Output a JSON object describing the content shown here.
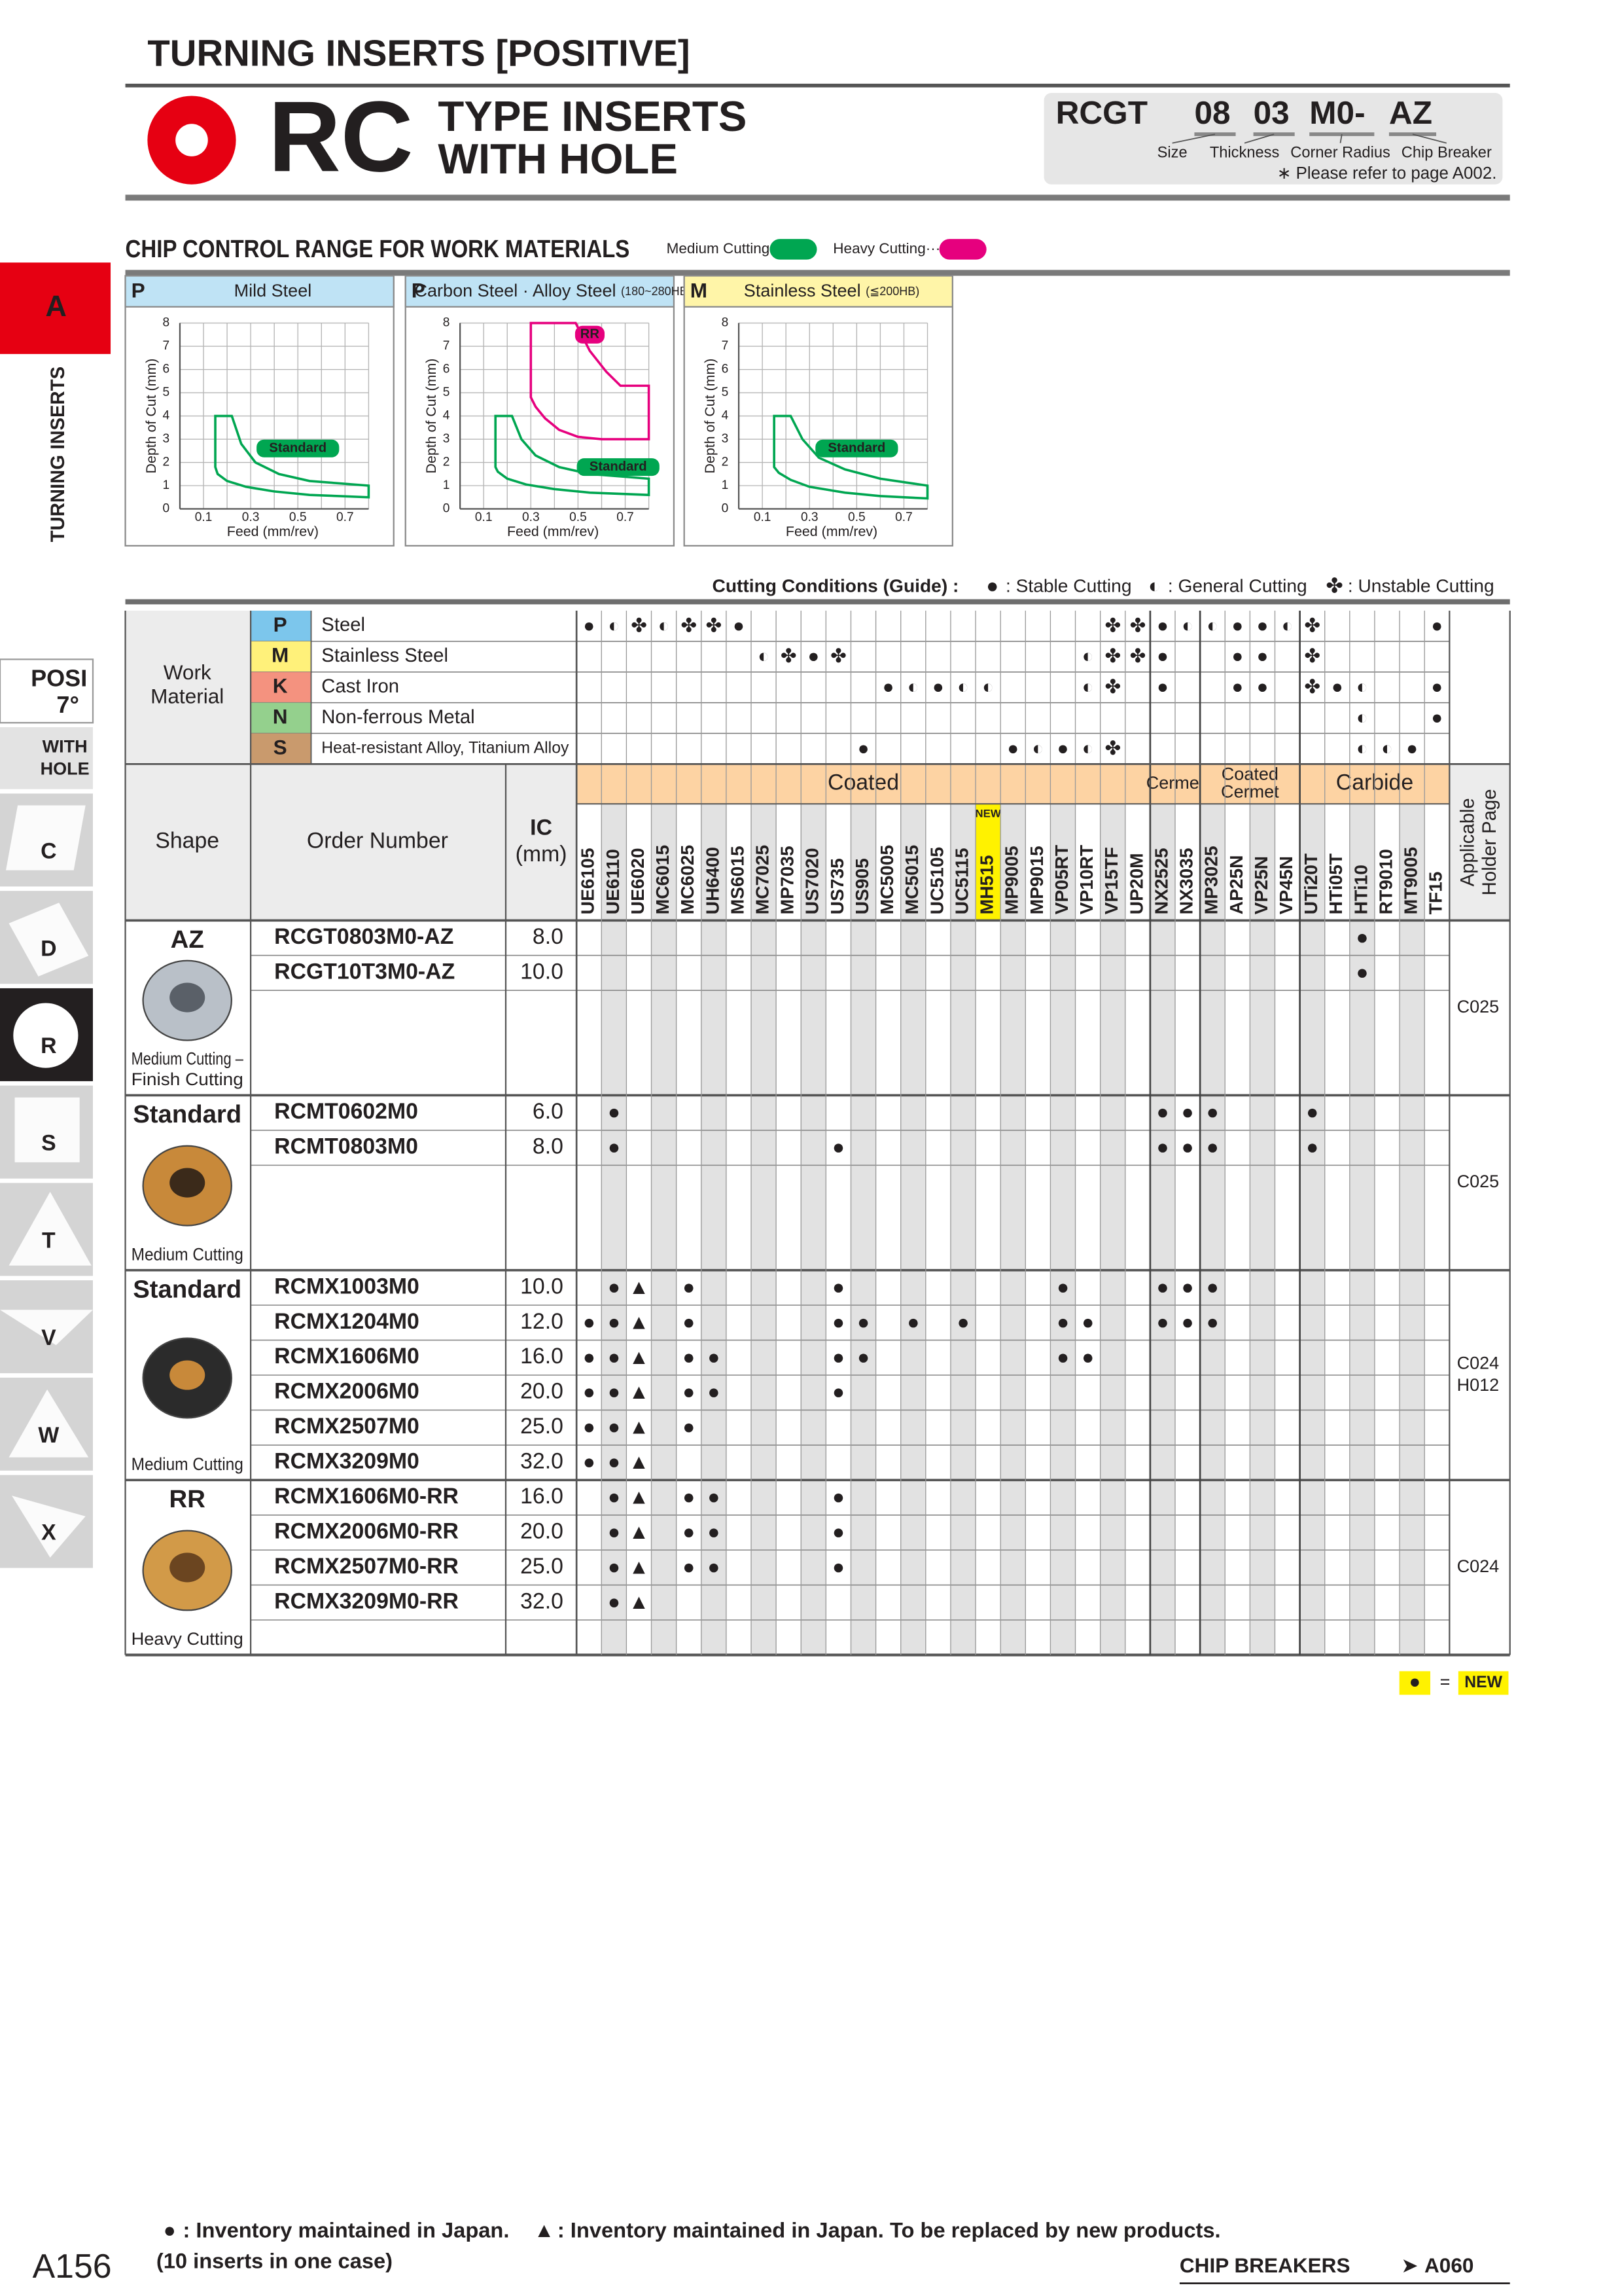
{
  "header": {
    "section_title": "TURNING INSERTS [POSITIVE]",
    "series_code": "RC",
    "title_lines": [
      "TYPE INSERTS",
      "WITH HOLE"
    ]
  },
  "designation": {
    "prefix": "RCGT",
    "codes": [
      "08",
      "03",
      "M0-",
      "AZ"
    ],
    "code_labels": [
      "Size",
      "Thickness",
      "Corner Radius",
      "Chip Breaker"
    ],
    "note": "∗ Please refer to page A002."
  },
  "sidebar": {
    "section_letter": "A",
    "section_name": "TURNING INSERTS",
    "posi": "POSI",
    "angle": "7°",
    "hole_lines": [
      "WITH",
      "HOLE"
    ],
    "shapes": [
      "C",
      "D",
      "R",
      "S",
      "T",
      "V",
      "W",
      "X"
    ],
    "active_shape": "R"
  },
  "chip_control": {
    "title": "CHIP CONTROL RANGE FOR WORK MATERIALS",
    "legend": [
      {
        "label": "Medium Cutting·····",
        "color": "#00a651"
      },
      {
        "label": "Heavy Cutting·····",
        "color": "#e6007e"
      }
    ],
    "y_label": "Depth of Cut (mm)",
    "x_label": "Feed (mm/rev)",
    "xlim": [
      0,
      0.8
    ],
    "ylim": [
      0,
      8
    ],
    "xticks": [
      0.1,
      0.3,
      0.5,
      0.7
    ],
    "yticks": [
      0,
      1,
      2,
      3,
      4,
      5,
      6,
      7,
      8
    ],
    "xgrid": [
      0.1,
      0.2,
      0.3,
      0.4,
      0.5,
      0.6,
      0.7,
      0.8
    ],
    "charts": [
      {
        "code": "P",
        "material": "Mild Steel",
        "header_color": "#bfe3f5",
        "areas": [
          {
            "name": "Standard",
            "color": "#00a651",
            "x": [
              0.15,
              0.15,
              0.22,
              0.26,
              0.32,
              0.42,
              0.55,
              0.8,
              0.8,
              0.55,
              0.4,
              0.28,
              0.2,
              0.16
            ],
            "y": [
              1.8,
              4,
              4,
              2.8,
              2.0,
              1.5,
              1.2,
              1.0,
              0.5,
              0.6,
              0.75,
              0.95,
              1.2,
              1.5
            ]
          }
        ]
      },
      {
        "code": "P",
        "material": "Carbon Steel · Alloy Steel ",
        "sub": "(180~280HB)",
        "header_color": "#bfe3f5",
        "areas": [
          {
            "name": "Standard",
            "color": "#00a651",
            "x": [
              0.15,
              0.15,
              0.22,
              0.26,
              0.32,
              0.42,
              0.55,
              0.8,
              0.8,
              0.55,
              0.4,
              0.28,
              0.2,
              0.16
            ],
            "y": [
              1.8,
              4,
              4,
              3.0,
              2.3,
              1.8,
              1.5,
              1.3,
              0.6,
              0.7,
              0.85,
              1.05,
              1.3,
              1.6
            ]
          },
          {
            "name": "RR",
            "color": "#e6007e",
            "x": [
              0.3,
              0.3,
              0.49,
              0.55,
              0.62,
              0.68,
              0.8,
              0.8,
              0.6,
              0.5,
              0.42,
              0.36,
              0.32
            ],
            "y": [
              4.8,
              8,
              8,
              6.8,
              5.9,
              5.3,
              5.3,
              3.0,
              3.0,
              3.1,
              3.4,
              3.9,
              4.4
            ]
          }
        ]
      },
      {
        "code": "M",
        "material": "Stainless Steel ",
        "sub": "(≦200HB)",
        "header_color": "#fff5a8",
        "areas": [
          {
            "name": "Standard",
            "color": "#00a651",
            "x": [
              0.15,
              0.15,
              0.22,
              0.27,
              0.34,
              0.45,
              0.6,
              0.8,
              0.8,
              0.6,
              0.45,
              0.3,
              0.22,
              0.17
            ],
            "y": [
              1.8,
              4,
              4,
              3.0,
              2.2,
              1.7,
              1.3,
              1.0,
              0.45,
              0.55,
              0.7,
              0.95,
              1.25,
              1.55
            ]
          }
        ]
      }
    ]
  },
  "cutting_conditions": {
    "title": "Cutting Conditions (Guide) :",
    "legend": [
      {
        "symbol": "●",
        "label": ": Stable Cutting"
      },
      {
        "symbol": "◐",
        "label": ": General Cutting"
      },
      {
        "symbol": "✤",
        "label": ": Unstable Cutting"
      }
    ]
  },
  "table": {
    "work_material_label": [
      "Work",
      "Material"
    ],
    "shape_label": "Shape",
    "order_label": "Order Number",
    "ic_label": [
      "IC",
      "(mm)"
    ],
    "holder_label": [
      "Applicable",
      "Holder Page"
    ],
    "new_grade": "MH515",
    "new_badge": "NEW",
    "grade_groups": [
      {
        "label": [
          "Coated"
        ],
        "grades": [
          "UE6105",
          "UE6110",
          "UE6020",
          "MC6015",
          "MC6025",
          "UH6400",
          "MS6015",
          "MC7025",
          "MP7035",
          "US7020",
          "US735",
          "US905",
          "MC5005",
          "MC5015",
          "UC5105",
          "UC5115",
          "MH515",
          "MP9005",
          "MP9015",
          "VP05RT",
          "VP10RT",
          "VP15TF",
          "UP20M"
        ]
      },
      {
        "label": [
          "Cermet"
        ],
        "grades": [
          "NX2525",
          "NX3035"
        ]
      },
      {
        "label": [
          "Coated",
          "Cermet"
        ],
        "grades": [
          "MP3025",
          "AP25N",
          "VP25N",
          "VP45N"
        ]
      },
      {
        "label": [
          "Carbide"
        ],
        "grades": [
          "UTi20T",
          "HTi05T",
          "HTi10",
          "RT9010",
          "MT9005",
          "TF15"
        ]
      }
    ],
    "materials": [
      {
        "code": "P",
        "name": "Steel",
        "bg": "#7cc6ec",
        "color": "#0091d5",
        "symbols": {
          "UE6105": "●",
          "UE6110": "◐",
          "UE6020": "✤",
          "MC6015": "◐",
          "MC6025": "✤",
          "UH6400": "✤",
          "MS6015": "●",
          "VP15TF": "✤",
          "UP20M": "✤",
          "NX2525": "●",
          "NX3035": "◐",
          "MP3025": "◐",
          "AP25N": "●",
          "VP25N": "●",
          "VP45N": "◐",
          "UTi20T": "✤",
          "TF15": "●"
        }
      },
      {
        "code": "M",
        "name": "Stainless Steel",
        "bg": "#fff17a",
        "color": "#e0b000",
        "symbols": {
          "MC7025": "◐",
          "MP7035": "✤",
          "US7020": "●",
          "US735": "✤",
          "VP10RT": "◐",
          "VP15TF": "✤",
          "UP20M": "✤",
          "NX2525": "●",
          "AP25N": "●",
          "VP25N": "●",
          "UTi20T": "✤"
        }
      },
      {
        "code": "K",
        "name": "Cast Iron",
        "bg": "#f4927f",
        "color": "#e60012",
        "symbols": {
          "MC5005": "●",
          "MC5015": "◐",
          "UC5105": "●",
          "UC5115": "◐",
          "MH515": "◐",
          "VP10RT": "◐",
          "VP15TF": "✤",
          "NX2525": "●",
          "AP25N": "●",
          "VP25N": "●",
          "UTi20T": "✤",
          "HTi05T": "●",
          "HTi10": "◐",
          "TF15": "●"
        }
      },
      {
        "code": "N",
        "name": "Non-ferrous Metal",
        "bg": "#94d08d",
        "color": "#009944",
        "symbols": {
          "HTi10": "◐",
          "TF15": "●"
        }
      },
      {
        "code": "S",
        "name": "Heat-resistant Alloy, Titanium Alloy",
        "bg": "#c99a6d",
        "color": "#9a5a1e",
        "symbols": {
          "US905": "●",
          "MP9005": "●",
          "MP9015": "◐",
          "VP05RT": "●",
          "VP10RT": "◐",
          "VP15TF": "✤",
          "HTi10": "◐",
          "RT9010": "◐",
          "MT9005": "●"
        }
      }
    ],
    "groups": [
      {
        "breaker": "AZ",
        "caption": [
          "Medium Cutting –",
          "Finish Cutting"
        ],
        "holder": [
          "C025"
        ],
        "rows": [
          {
            "order": "RCGT0803M0-AZ",
            "ic": "8.0",
            "marks": {
              "HTi10": "●"
            }
          },
          {
            "order": "RCGT10T3M0-AZ",
            "ic": "10.0",
            "marks": {
              "HTi10": "●"
            }
          }
        ]
      },
      {
        "breaker": "Standard",
        "caption": [
          "Medium Cutting"
        ],
        "holder": [
          "C025"
        ],
        "rows": [
          {
            "order": "RCMT0602M0",
            "ic": "6.0",
            "marks": {
              "UE6110": "●",
              "NX2525": "●",
              "NX3035": "●",
              "MP3025": "●",
              "UTi20T": "●"
            }
          },
          {
            "order": "RCMT0803M0",
            "ic": "8.0",
            "marks": {
              "UE6110": "●",
              "US735": "●",
              "NX2525": "●",
              "NX3035": "●",
              "MP3025": "●",
              "UTi20T": "●"
            }
          }
        ]
      },
      {
        "breaker": "Standard",
        "caption": [
          "Medium Cutting"
        ],
        "holder": [
          "C024",
          "H012"
        ],
        "rows": [
          {
            "order": "RCMX1003M0",
            "ic": "10.0",
            "marks": {
              "UE6110": "●",
              "UE6020": "▲",
              "MC6025": "●",
              "US735": "●",
              "VP05RT": "●",
              "NX2525": "●",
              "NX3035": "●",
              "MP3025": "●"
            }
          },
          {
            "order": "RCMX1204M0",
            "ic": "12.0",
            "marks": {
              "UE6105": "●",
              "UE6110": "●",
              "UE6020": "▲",
              "MC6025": "●",
              "US735": "●",
              "US905": "●",
              "MC5015": "●",
              "UC5115": "●",
              "VP05RT": "●",
              "VP10RT": "●",
              "NX2525": "●",
              "NX3035": "●",
              "MP3025": "●"
            }
          },
          {
            "order": "RCMX1606M0",
            "ic": "16.0",
            "marks": {
              "UE6105": "●",
              "UE6110": "●",
              "UE6020": "▲",
              "MC6025": "●",
              "UH6400": "●",
              "US735": "●",
              "US905": "●",
              "VP05RT": "●",
              "VP10RT": "●"
            }
          },
          {
            "order": "RCMX2006M0",
            "ic": "20.0",
            "marks": {
              "UE6105": "●",
              "UE6110": "●",
              "UE6020": "▲",
              "MC6025": "●",
              "UH6400": "●",
              "US735": "●"
            }
          },
          {
            "order": "RCMX2507M0",
            "ic": "25.0",
            "marks": {
              "UE6105": "●",
              "UE6110": "●",
              "UE6020": "▲",
              "MC6025": "●"
            }
          },
          {
            "order": "RCMX3209M0",
            "ic": "32.0",
            "marks": {
              "UE6105": "●",
              "UE6110": "●",
              "UE6020": "▲"
            }
          }
        ]
      },
      {
        "breaker": "RR",
        "caption": [
          "Heavy Cutting"
        ],
        "holder": [
          "C024"
        ],
        "rows": [
          {
            "order": "RCMX1606M0-RR",
            "ic": "16.0",
            "marks": {
              "UE6110": "●",
              "UE6020": "▲",
              "MC6025": "●",
              "UH6400": "●",
              "US735": "●"
            }
          },
          {
            "order": "RCMX2006M0-RR",
            "ic": "20.0",
            "marks": {
              "UE6110": "●",
              "UE6020": "▲",
              "MC6025": "●",
              "UH6400": "●",
              "US735": "●"
            }
          },
          {
            "order": "RCMX2507M0-RR",
            "ic": "25.0",
            "marks": {
              "UE6110": "●",
              "UE6020": "▲",
              "MC6025": "●",
              "UH6400": "●",
              "US735": "●"
            }
          },
          {
            "order": "RCMX3209M0-RR",
            "ic": "32.0",
            "marks": {
              "UE6110": "●",
              "UE6020": "▲"
            }
          }
        ]
      }
    ]
  },
  "new_legend": {
    "symbol": "●",
    "equals": "=",
    "label": "NEW"
  },
  "footer": {
    "notes": [
      {
        "symbol": "●",
        "text": ": Inventory maintained in Japan."
      },
      {
        "symbol": "▲",
        "text": ": Inventory maintained in Japan. To be replaced by new products."
      }
    ],
    "case_note": "(10 inserts in one case)",
    "page": "A156",
    "link_label": "CHIP BREAKERS",
    "link_arrow": "➤",
    "link_page": "A060"
  }
}
